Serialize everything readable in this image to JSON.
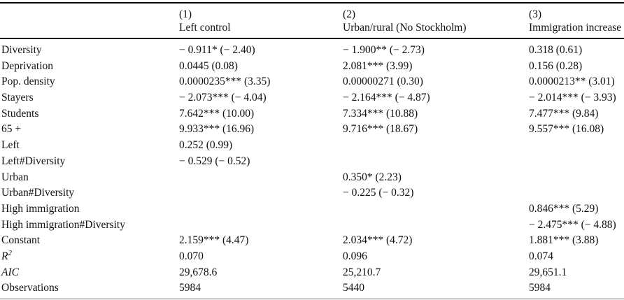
{
  "table": {
    "header": {
      "col1_num": "(1)",
      "col1_name": "Left control",
      "col2_num": "(2)",
      "col2_name": "Urban/rural (No Stockholm)",
      "col3_num": "(3)",
      "col3_name": "Immigration increase"
    },
    "rows": [
      {
        "label": "Diversity",
        "c1": "− 0.911* (− 2.40)",
        "c2": "− 1.900** (− 2.73)",
        "c3": "0.318 (0.61)"
      },
      {
        "label": "Deprivation",
        "c1": "0.0445 (0.08)",
        "c2": "2.081*** (3.99)",
        "c3": "0.156 (0.28)"
      },
      {
        "label": "Pop. density",
        "c1": "0.0000235*** (3.35)",
        "c2": "0.00000271 (0.30)",
        "c3": "0.0000213** (3.01)"
      },
      {
        "label": "Stayers",
        "c1": "− 2.073*** (− 4.04)",
        "c2": "− 2.164*** (− 4.87)",
        "c3": "− 2.014*** (− 3.93)"
      },
      {
        "label": "Students",
        "c1": "7.642*** (10.00)",
        "c2": "7.334*** (10.88)",
        "c3": "7.477*** (9.84)"
      },
      {
        "label": "65 +",
        "c1": "9.933*** (16.96)",
        "c2": "9.716*** (18.67)",
        "c3": "9.557*** (16.08)"
      },
      {
        "label": "Left",
        "c1": "0.252 (0.99)",
        "c2": "",
        "c3": ""
      },
      {
        "label": "Left#Diversity",
        "c1": "− 0.529 (− 0.52)",
        "c2": "",
        "c3": ""
      },
      {
        "label": "Urban",
        "c1": "",
        "c2": "0.350* (2.23)",
        "c3": ""
      },
      {
        "label": "Urban#Diversity",
        "c1": "",
        "c2": "− 0.225 (− 0.32)",
        "c3": ""
      },
      {
        "label": "High immigration",
        "c1": "",
        "c2": "",
        "c3": "0.846*** (5.29)"
      },
      {
        "label": "High immigration#Diversity",
        "c1": "",
        "c2": "",
        "c3": "− 2.475*** (− 4.88)"
      },
      {
        "label": "Constant",
        "c1": "2.159*** (4.47)",
        "c2": "2.034*** (4.72)",
        "c3": "1.881*** (3.88)"
      },
      {
        "label": "R",
        "label_sup": "2",
        "c1": "0.070",
        "c2": "0.096",
        "c3": "0.074"
      },
      {
        "label": "AIC",
        "c1": "29,678.6",
        "c2": "25,210.7",
        "c3": "29,651.1"
      },
      {
        "label": "Observations",
        "c1": "5984",
        "c2": "5440",
        "c3": "5984"
      }
    ]
  }
}
